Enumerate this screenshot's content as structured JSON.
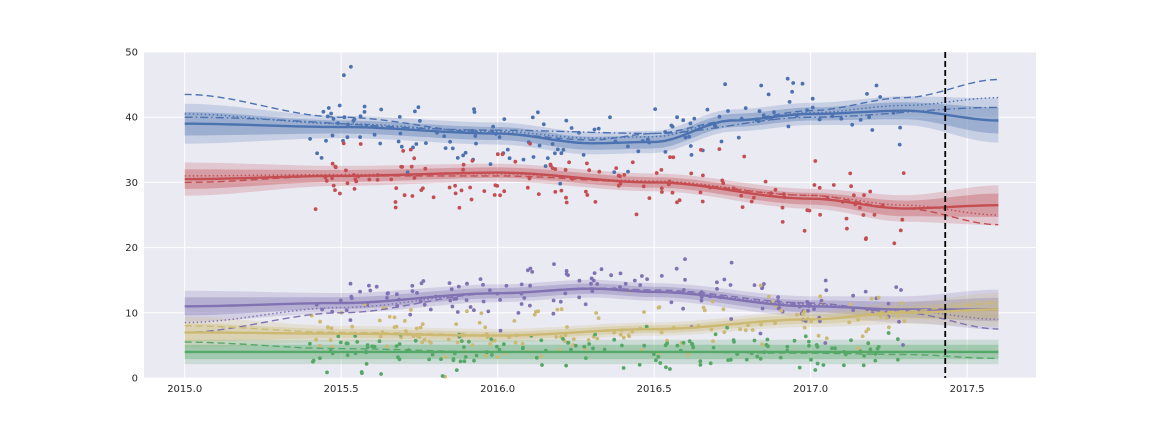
{
  "chart_data": {
    "type": "scatter",
    "title": "",
    "xlabel": "",
    "ylabel": "",
    "xlim": [
      2014.87,
      2017.72
    ],
    "ylim": [
      0,
      50
    ],
    "xticks": [
      2015.0,
      2015.5,
      2016.0,
      2016.5,
      2017.0,
      2017.5
    ],
    "xtick_labels": [
      "2015.0",
      "2015.5",
      "2016.0",
      "2016.5",
      "2017.0",
      "2017.5"
    ],
    "yticks": [
      0,
      10,
      20,
      30,
      40,
      50
    ],
    "ytick_labels": [
      "0",
      "10",
      "20",
      "30",
      "40",
      "50"
    ],
    "grid": true,
    "vline": {
      "x": 2017.43,
      "style": "dashed",
      "color": "#000000"
    },
    "series": [
      {
        "name": "blue",
        "color": "#4C72B0",
        "point_range": [
          2015.4,
          2017.3
        ],
        "seed": 11,
        "trend": {
          "x": [
            2015.0,
            2015.5,
            2016.0,
            2016.3,
            2016.5,
            2016.75,
            2017.0,
            2017.3,
            2017.6
          ],
          "y": [
            39.0,
            38.5,
            37.5,
            36.0,
            36.2,
            39.5,
            40.5,
            41.0,
            39.5
          ]
        },
        "band_halfwidth": [
          1.8,
          1.0,
          1.0,
          1.0,
          1.0,
          1.0,
          1.0,
          1.3,
          2.0
        ],
        "alt_fits": [
          {
            "style": "dashed",
            "x": [
              2015.0,
              2015.5,
              2016.0,
              2016.3,
              2016.5,
              2016.75,
              2017.0,
              2017.3,
              2017.6
            ],
            "y": [
              43.5,
              40.0,
              37.5,
              36.5,
              37.5,
              39.5,
              41.0,
              43.0,
              45.8
            ]
          },
          {
            "style": "dotted",
            "x": [
              2015.0,
              2015.5,
              2016.0,
              2016.3,
              2016.5,
              2016.75,
              2017.0,
              2017.3,
              2017.6
            ],
            "y": [
              40.5,
              39.0,
              37.8,
              36.8,
              37.0,
              39.5,
              40.7,
              41.8,
              43.0
            ]
          },
          {
            "style": "dashdot",
            "x": [
              2015.0,
              2016.0,
              2016.5,
              2017.0,
              2017.6
            ],
            "y": [
              40.0,
              38.0,
              37.5,
              40.0,
              41.5
            ]
          }
        ]
      },
      {
        "name": "red",
        "color": "#C44E52",
        "point_range": [
          2015.4,
          2017.3
        ],
        "seed": 23,
        "trend": {
          "x": [
            2015.0,
            2015.5,
            2016.0,
            2016.5,
            2017.0,
            2017.3,
            2017.6
          ],
          "y": [
            30.5,
            31.0,
            31.5,
            30.0,
            27.5,
            26.0,
            26.5
          ]
        },
        "band_halfwidth": [
          1.5,
          0.9,
          0.8,
          0.8,
          0.9,
          1.2,
          1.8
        ],
        "alt_fits": [
          {
            "style": "dashed",
            "x": [
              2015.0,
              2015.5,
              2016.0,
              2016.5,
              2017.0,
              2017.3,
              2017.6
            ],
            "y": [
              30.0,
              31.0,
              31.0,
              30.0,
              28.0,
              26.0,
              23.5
            ]
          },
          {
            "style": "dotted",
            "x": [
              2015.0,
              2015.5,
              2016.0,
              2016.5,
              2017.0,
              2017.3,
              2017.6
            ],
            "y": [
              31.0,
              31.2,
              31.3,
              30.2,
              28.0,
              26.5,
              25.0
            ]
          }
        ]
      },
      {
        "name": "purple",
        "color": "#8172B2",
        "point_range": [
          2015.4,
          2017.3
        ],
        "seed": 37,
        "trend": {
          "x": [
            2015.0,
            2015.5,
            2016.0,
            2016.3,
            2016.5,
            2017.0,
            2017.3,
            2017.6
          ],
          "y": [
            11.0,
            11.5,
            13.0,
            13.7,
            13.2,
            11.0,
            10.5,
            10.5
          ]
        },
        "band_halfwidth": [
          1.4,
          0.9,
          0.8,
          0.8,
          0.8,
          0.9,
          1.2,
          1.8
        ],
        "alt_fits": [
          {
            "style": "dashed",
            "x": [
              2015.0,
              2015.5,
              2016.0,
              2016.3,
              2016.5,
              2017.0,
              2017.3,
              2017.6
            ],
            "y": [
              7.0,
              10.0,
              13.0,
              13.8,
              13.5,
              11.5,
              10.0,
              7.5
            ]
          },
          {
            "style": "dotted",
            "x": [
              2015.0,
              2015.5,
              2016.0,
              2016.3,
              2016.5,
              2017.0,
              2017.3,
              2017.6
            ],
            "y": [
              8.5,
              10.8,
              13.0,
              13.7,
              13.3,
              11.3,
              10.3,
              9.0
            ]
          }
        ]
      },
      {
        "name": "yellow",
        "color": "#CCB974",
        "point_range": [
          2015.4,
          2017.3
        ],
        "seed": 51,
        "trend": {
          "x": [
            2015.0,
            2015.5,
            2016.0,
            2016.5,
            2017.0,
            2017.3,
            2017.6
          ],
          "y": [
            7.0,
            6.8,
            6.5,
            7.5,
            9.0,
            10.0,
            10.5
          ]
        },
        "band_halfwidth": [
          1.4,
          0.7,
          0.6,
          0.6,
          0.7,
          1.0,
          1.5
        ],
        "alt_fits": [
          {
            "style": "dashed",
            "x": [
              2015.0,
              2015.5,
              2016.0,
              2016.5,
              2017.0,
              2017.3,
              2017.6
            ],
            "y": [
              8.0,
              7.0,
              6.6,
              7.4,
              9.0,
              10.3,
              11.5
            ]
          }
        ]
      },
      {
        "name": "green",
        "color": "#55A868",
        "point_range": [
          2015.4,
          2017.3
        ],
        "seed": 67,
        "trend": {
          "x": [
            2015.0,
            2017.6
          ],
          "y": [
            4.0,
            4.0
          ]
        },
        "band_halfwidth": [
          1.1,
          1.1
        ],
        "alt_fits": [
          {
            "style": "dashed",
            "x": [
              2015.0,
              2015.5,
              2016.0,
              2016.5,
              2017.0,
              2017.3,
              2017.6
            ],
            "y": [
              5.5,
              4.5,
              4.0,
              4.0,
              3.8,
              3.6,
              3.0
            ]
          }
        ]
      }
    ]
  }
}
